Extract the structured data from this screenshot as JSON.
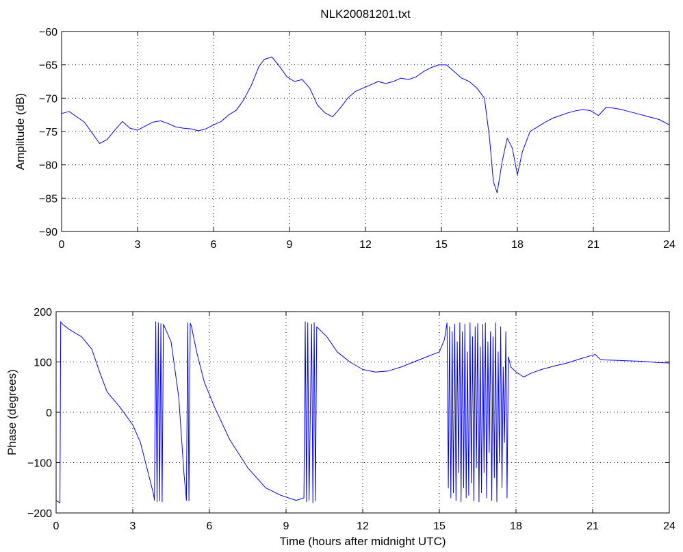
{
  "title": "NLK20081201.txt",
  "line_color": "#0000ff",
  "chart_data": [
    {
      "type": "line",
      "title": "NLK20081201.txt",
      "xlabel": "",
      "ylabel": "Amplitude (dB)",
      "xlim": [
        0,
        24
      ],
      "ylim": [
        -90,
        -60
      ],
      "xticks": [
        "0",
        "3",
        "6",
        "9",
        "12",
        "15",
        "18",
        "21",
        "24"
      ],
      "yticks": [
        "-90",
        "-85",
        "-80",
        "-75",
        "-70",
        "-65",
        "-60"
      ],
      "grid": true,
      "series": [
        {
          "x": [
            0,
            0.3,
            0.6,
            0.9,
            1.2,
            1.5,
            1.8,
            2.1,
            2.4,
            2.7,
            3.0,
            3.3,
            3.6,
            3.9,
            4.2,
            4.5,
            4.8,
            5.1,
            5.4,
            5.7,
            6.0,
            6.3,
            6.6,
            6.9,
            7.2,
            7.5,
            7.8,
            8.0,
            8.3,
            8.6,
            8.9,
            9.2,
            9.5,
            9.8,
            10.1,
            10.4,
            10.7,
            11.0,
            11.3,
            11.6,
            11.9,
            12.2,
            12.5,
            12.8,
            13.1,
            13.4,
            13.7,
            14.0,
            14.3,
            14.6,
            14.9,
            15.2,
            15.5,
            15.8,
            16.1,
            16.4,
            16.7,
            16.9,
            17.05,
            17.2,
            17.4,
            17.6,
            17.8,
            18.0,
            18.2,
            18.5,
            18.8,
            19.1,
            19.4,
            19.7,
            20.0,
            20.3,
            20.6,
            20.9,
            21.2,
            21.5,
            21.8,
            22.1,
            22.4,
            22.7,
            23.0,
            23.3,
            23.6,
            24.0
          ],
          "values": [
            -72.3,
            -72.0,
            -72.8,
            -73.6,
            -75.2,
            -76.8,
            -76.2,
            -74.8,
            -73.5,
            -74.5,
            -74.8,
            -74.2,
            -73.6,
            -73.4,
            -73.8,
            -74.3,
            -74.5,
            -74.6,
            -74.9,
            -74.6,
            -74.0,
            -73.5,
            -72.5,
            -71.8,
            -70.2,
            -68.0,
            -65.2,
            -64.2,
            -63.8,
            -65.2,
            -66.8,
            -67.5,
            -67.2,
            -68.5,
            -71.0,
            -72.2,
            -72.8,
            -71.5,
            -70.0,
            -69.0,
            -68.5,
            -68.0,
            -67.5,
            -67.8,
            -67.5,
            -67.0,
            -67.2,
            -66.8,
            -66.0,
            -65.4,
            -65.0,
            -65.0,
            -66.0,
            -67.0,
            -67.5,
            -68.5,
            -70.0,
            -76.0,
            -82.5,
            -84.2,
            -79.5,
            -76.0,
            -77.5,
            -81.5,
            -78.0,
            -75.0,
            -74.3,
            -73.6,
            -73.0,
            -72.6,
            -72.2,
            -71.9,
            -71.7,
            -71.9,
            -72.6,
            -71.4,
            -71.5,
            -71.7,
            -72.0,
            -72.3,
            -72.6,
            -72.9,
            -73.2,
            -74.0
          ]
        }
      ]
    },
    {
      "type": "line",
      "title": "",
      "xlabel": "Time (hours after midnight UTC)",
      "ylabel": "Phase (degrees)",
      "xlim": [
        0,
        24
      ],
      "ylim": [
        -200,
        200
      ],
      "xticks": [
        "0",
        "3",
        "6",
        "9",
        "12",
        "15",
        "18",
        "21",
        "24"
      ],
      "yticks": [
        "-200",
        "-100",
        "0",
        "100",
        "200"
      ],
      "grid": true,
      "series": [
        {
          "x": [
            0,
            0.15,
            0.18,
            0.25,
            0.5,
            1.0,
            1.4,
            1.7,
            2.0,
            2.5,
            3.0,
            3.3,
            3.6,
            3.8,
            3.85,
            3.9,
            3.95,
            4.0,
            4.05,
            4.1,
            4.15,
            4.2,
            4.5,
            4.8,
            5.0,
            5.1,
            5.15,
            5.2,
            5.25,
            5.3,
            5.5,
            5.8,
            6.2,
            6.8,
            7.5,
            8.2,
            8.8,
            9.4,
            9.7,
            9.75,
            9.8,
            9.85,
            9.9,
            10.0,
            10.05,
            10.1,
            10.15,
            10.2,
            10.6,
            11.0,
            11.5,
            12.0,
            12.5,
            13.0,
            13.5,
            14.0,
            14.5,
            15.0,
            15.2,
            15.3,
            15.35,
            15.4,
            15.45,
            15.5,
            15.55,
            15.6,
            15.65,
            15.7,
            15.75,
            15.8,
            15.85,
            15.9,
            15.95,
            16.0,
            16.05,
            16.1,
            16.15,
            16.2,
            16.25,
            16.3,
            16.35,
            16.4,
            16.45,
            16.5,
            16.55,
            16.6,
            16.65,
            16.7,
            16.75,
            16.8,
            16.85,
            16.9,
            16.95,
            17.0,
            17.05,
            17.1,
            17.15,
            17.2,
            17.25,
            17.3,
            17.35,
            17.4,
            17.45,
            17.5,
            17.55,
            17.6,
            17.65,
            17.7,
            17.8,
            18.0,
            18.3,
            18.6,
            19.0,
            19.5,
            20.0,
            20.5,
            20.9,
            21.1,
            21.3,
            21.5,
            22.0,
            22.5,
            23.0,
            23.5,
            24.0
          ],
          "values": [
            -175,
            -180,
            180,
            175,
            165,
            150,
            125,
            80,
            40,
            10,
            -25,
            -60,
            -120,
            -160,
            -175,
            180,
            -178,
            178,
            -176,
            176,
            -178,
            175,
            140,
            30,
            -120,
            -175,
            178,
            -176,
            177,
            170,
            120,
            60,
            10,
            -55,
            -110,
            -150,
            -165,
            -175,
            -170,
            180,
            -178,
            178,
            -175,
            175,
            -180,
            178,
            -176,
            170,
            150,
            120,
            100,
            85,
            80,
            82,
            90,
            100,
            110,
            120,
            145,
            178,
            -150,
            170,
            -170,
            160,
            -160,
            175,
            -175,
            140,
            -120,
            178,
            -178,
            160,
            -150,
            175,
            -170,
            120,
            -165,
            178,
            -140,
            150,
            -176,
            170,
            -110,
            176,
            -178,
            130,
            -160,
            175,
            -120,
            178,
            -170,
            140,
            -80,
            160,
            -175,
            150,
            -130,
            178,
            -178,
            120,
            -100,
            170,
            -150,
            90,
            -60,
            160,
            -170,
            110,
            90,
            80,
            70,
            78,
            85,
            92,
            98,
            106,
            112,
            115,
            105,
            104,
            103,
            102,
            101,
            99,
            98
          ]
        }
      ]
    }
  ]
}
